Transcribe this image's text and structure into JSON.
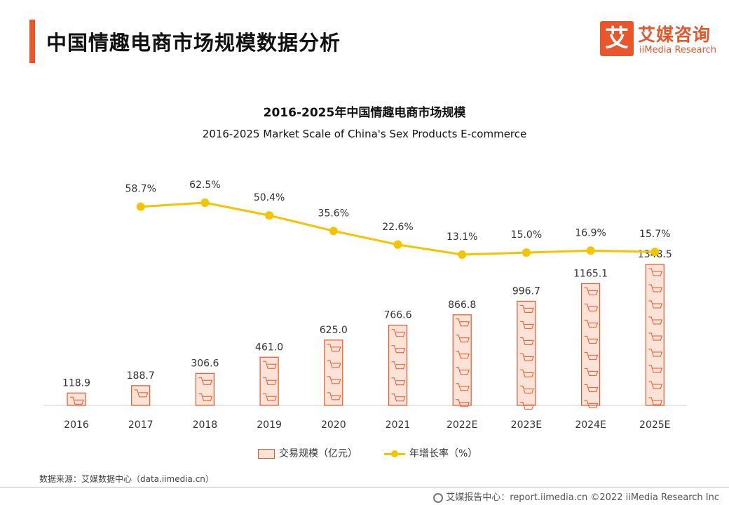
{
  "header": {
    "title": "中国情趣电商市场规模数据分析",
    "logo_mark": "艾",
    "logo_cn": "艾媒咨询",
    "logo_en": "iiMedia Research"
  },
  "chart_data": {
    "type": "bar",
    "title": "2016-2025年中国情趣电商市场规模",
    "subtitle": "2016-2025 Market Scale of China's Sex Products E-commerce",
    "categories": [
      "2016",
      "2017",
      "2018",
      "2019",
      "2020",
      "2021",
      "2022E",
      "2023E",
      "2024E",
      "2025E"
    ],
    "series": [
      {
        "name": "交易规模（亿元）",
        "type": "bar",
        "values": [
          118.9,
          188.7,
          306.6,
          461.0,
          625.0,
          766.6,
          866.8,
          996.7,
          1165.1,
          1348.5
        ],
        "labels": [
          "118.9",
          "188.7",
          "306.6",
          "461.0",
          "625.0",
          "766.6",
          "866.8",
          "996.7",
          "1165.1",
          "1348.5"
        ]
      },
      {
        "name": "年增长率（%）",
        "type": "line",
        "values": [
          null,
          58.7,
          62.5,
          50.4,
          35.6,
          22.6,
          13.1,
          15.0,
          16.9,
          15.7
        ],
        "labels": [
          "",
          "58.7%",
          "62.5%",
          "50.4%",
          "35.6%",
          "22.6%",
          "13.1%",
          "15.0%",
          "16.9%",
          "15.7%"
        ]
      }
    ],
    "ylim_bar": [
      0,
      1400
    ],
    "ylim_line": [
      0,
      100
    ],
    "legend_position": "bottom",
    "colors": {
      "bar_stroke": "#e8562a",
      "bar_fill": "#fbe3d8",
      "line": "#f5c400",
      "axis": "#cccccc"
    }
  },
  "legend": {
    "bar_label": "交易规模（亿元）",
    "line_label": "年增长率（%）"
  },
  "source": "数据来源：艾媒数据中心（data.iimedia.cn）",
  "footer": "艾媒报告中心：report.iimedia.cn   ©2022  iiMedia Research  Inc"
}
